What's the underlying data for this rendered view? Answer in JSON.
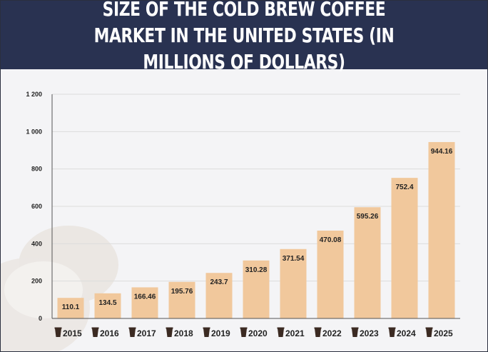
{
  "title": "SIZE OF THE COLD BREW COFFEE MARKET IN THE UNITED STATES (IN MILLIONS OF DOLLARS)",
  "colors": {
    "header_bg": "#293251",
    "bar_fill": "#f1c89c",
    "axis": "#555555",
    "grid": "#dcdcdc",
    "cup_icon": "#3b2a22",
    "text": "#222222"
  },
  "chart_data": {
    "type": "bar",
    "title": "SIZE OF THE COLD BREW COFFEE MARKET IN THE UNITED STATES (IN MILLIONS OF DOLLARS)",
    "categories": [
      "2015",
      "2016",
      "2017",
      "2018",
      "2019",
      "2020",
      "2021",
      "2022",
      "2023",
      "2024",
      "2025"
    ],
    "values": [
      110.1,
      134.5,
      166.46,
      195.76,
      243.7,
      310.28,
      371.54,
      470.08,
      595.26,
      752.4,
      944.16
    ],
    "value_labels": [
      "110.1",
      "134.5",
      "166.46",
      "195.76",
      "243.7",
      "310.28",
      "371.54",
      "470.08",
      "595.26",
      "752.4",
      "944.16"
    ],
    "y_ticks": [
      0,
      200,
      400,
      600,
      800,
      1000,
      1200
    ],
    "y_tick_labels": [
      "0",
      "200",
      "400",
      "600",
      "800",
      "1 000",
      "1 200"
    ],
    "ylim": [
      0,
      1200
    ],
    "xlabel": "",
    "ylabel": "",
    "grid": true,
    "category_icon": "coffee-cup-icon"
  }
}
